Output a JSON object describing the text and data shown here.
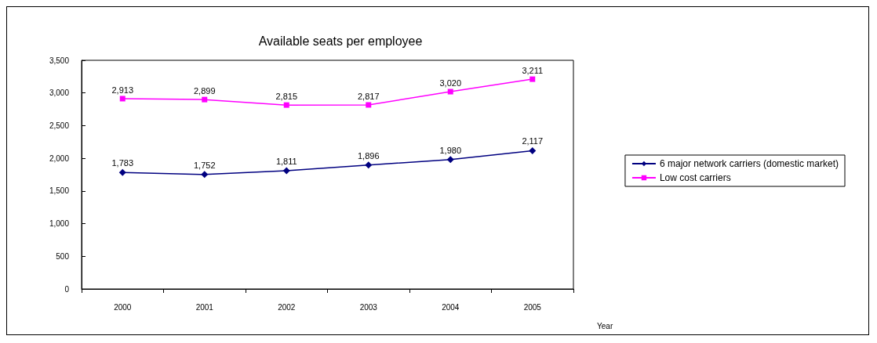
{
  "chart_data": {
    "type": "line",
    "title": "Available seats per employee",
    "xlabel": "Year",
    "categories": [
      "2000",
      "2001",
      "2002",
      "2003",
      "2004",
      "2005"
    ],
    "series": [
      {
        "name": "6 major network carriers (domestic market)",
        "color": "#000080",
        "marker": "diamond",
        "values": [
          1783,
          1752,
          1811,
          1896,
          1980,
          2117
        ],
        "value_labels": [
          "1,783",
          "1,752",
          "1,811",
          "1,896",
          "1,980",
          "2,117"
        ]
      },
      {
        "name": "Low cost carriers",
        "color": "#ff00ff",
        "marker": "square",
        "values": [
          2913,
          2899,
          2815,
          2817,
          3020,
          3211
        ],
        "value_labels": [
          "2,913",
          "2,899",
          "2,815",
          "2,817",
          "3,020",
          "3,211"
        ]
      }
    ],
    "ylim": [
      0,
      3500
    ],
    "yticks": [
      {
        "value": 0,
        "label": "0"
      },
      {
        "value": 500,
        "label": "500"
      },
      {
        "value": 1000,
        "label": "1,000"
      },
      {
        "value": 1500,
        "label": "1,500"
      },
      {
        "value": 2000,
        "label": "2,000"
      },
      {
        "value": 2500,
        "label": "2,500"
      },
      {
        "value": 3000,
        "label": "3,000"
      },
      {
        "value": 3500,
        "label": "3,500"
      }
    ],
    "grid": false,
    "legend": "right",
    "line_style": "solid"
  }
}
